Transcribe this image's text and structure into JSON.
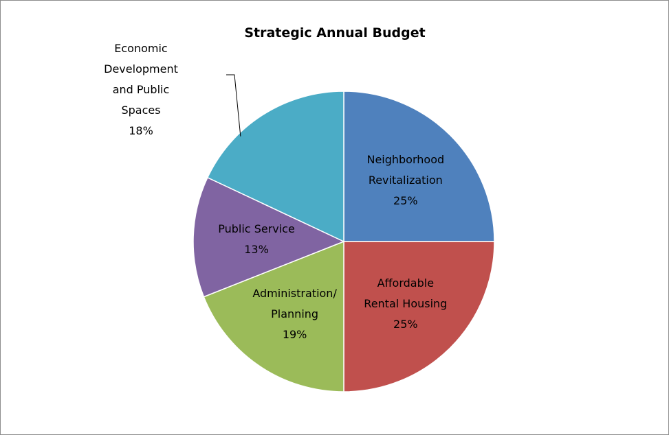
{
  "chart_data": {
    "type": "pie",
    "title": "Strategic Annual Budget",
    "start_angle_deg": 0,
    "direction": "clockwise",
    "slices": [
      {
        "id": "neighborhood",
        "label_lines": [
          "Neighborhood",
          "Revitalization",
          "25%"
        ],
        "value": 25,
        "color": "#4f81bd",
        "label_position": "inside"
      },
      {
        "id": "rental",
        "label_lines": [
          "Affordable",
          "Rental Housing",
          "25%"
        ],
        "value": 25,
        "color": "#c0504d",
        "label_position": "inside"
      },
      {
        "id": "administration",
        "label_lines": [
          "Administration/",
          "Planning",
          "19%"
        ],
        "value": 19,
        "color": "#9bbb59",
        "label_position": "inside"
      },
      {
        "id": "public-service",
        "label_lines": [
          "Public Service",
          "13%"
        ],
        "value": 13,
        "color": "#8064a2",
        "label_position": "inside"
      },
      {
        "id": "economic",
        "label_lines": [
          "Economic",
          "Development",
          "and Public",
          "Spaces",
          "18%"
        ],
        "value": 18,
        "color": "#4bacc6",
        "label_position": "outside"
      }
    ],
    "legend": "none"
  }
}
